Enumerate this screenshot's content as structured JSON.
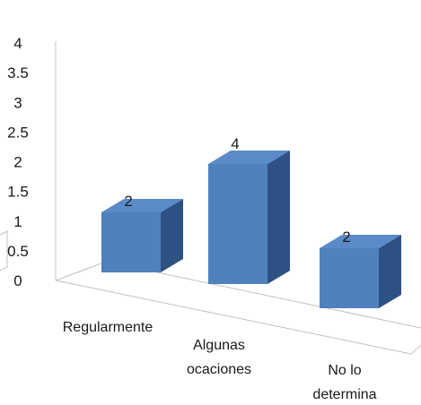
{
  "chart_data": {
    "type": "bar",
    "title": "",
    "xlabel": "",
    "ylabel": "",
    "categories": [
      "Regularmente",
      "Algunas ocaciones",
      "No lo determina"
    ],
    "category_lines": [
      [
        "Regularmente"
      ],
      [
        "Algunas",
        "ocaciones"
      ],
      [
        "No lo",
        "determina"
      ]
    ],
    "values": [
      2,
      4,
      2
    ],
    "data_labels": [
      "2",
      "4",
      "2"
    ],
    "ylim": [
      0,
      4
    ],
    "yticks": [
      "0",
      "0.5",
      "1",
      "1.5",
      "2",
      "2.5",
      "3",
      "3.5",
      "4"
    ],
    "grid": false,
    "legend": "none",
    "style": "3d-column",
    "colors": {
      "bar_front": "#4f81bd",
      "bar_side": "#2e5184",
      "bar_top": "#5b8ac8",
      "axis_lines": "#c0c0c0"
    }
  }
}
